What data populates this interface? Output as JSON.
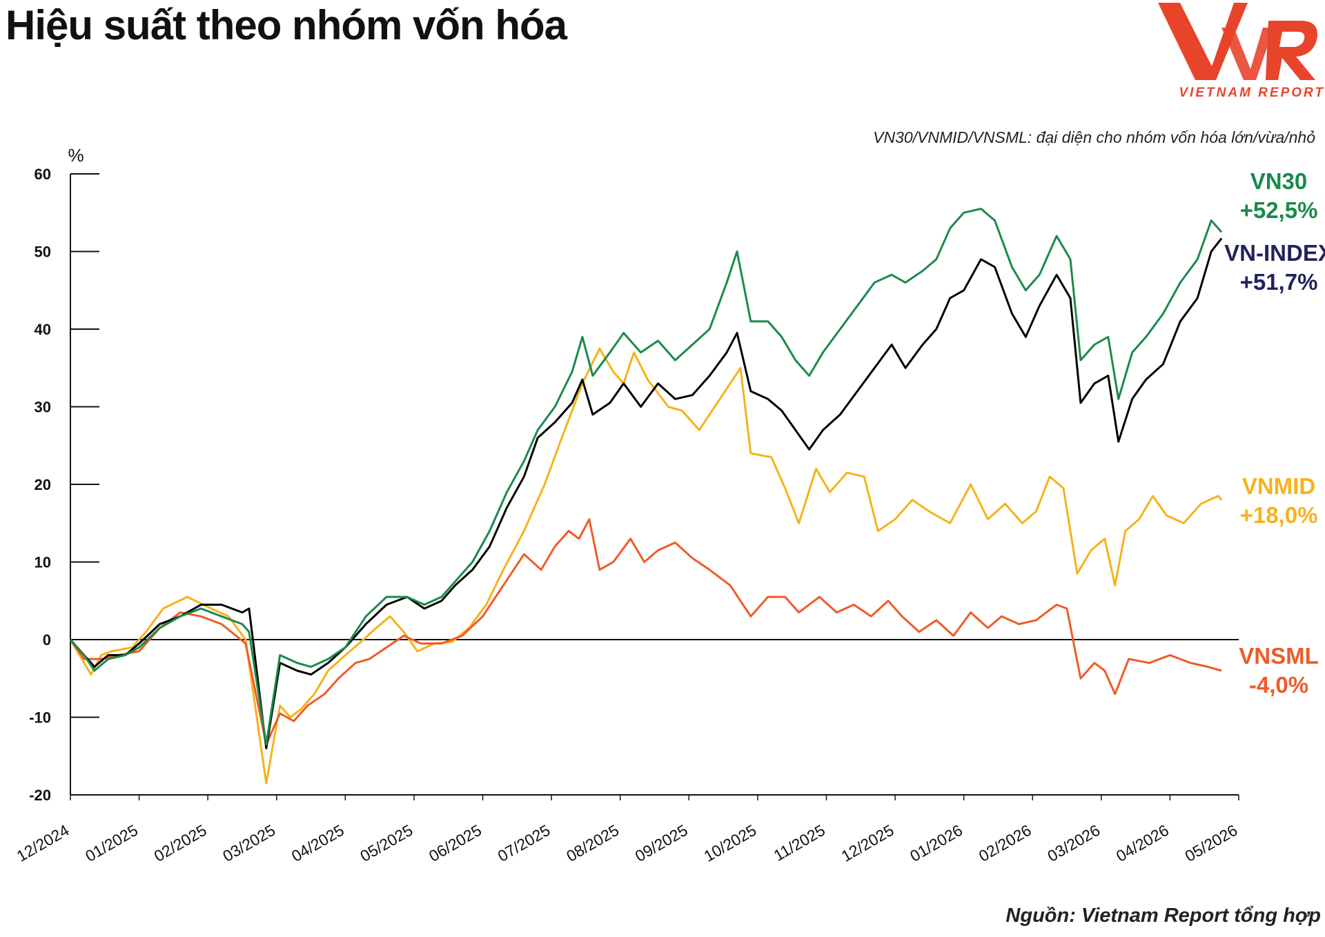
{
  "title": "Hiệu suất theo nhóm vốn hóa",
  "subtitle": "VN30/VNMID/VNSML: đại diện cho nhóm vốn hóa lớn/vừa/nhỏ",
  "source": "Nguồn: Vietnam Report tổng hợp",
  "logo": {
    "brand": "VNR",
    "tagline": "VIETNAM REPORT",
    "color": "#e8442a"
  },
  "chart_data": {
    "type": "line",
    "ylabel": "%",
    "ylim": [
      -20,
      60
    ],
    "yticks": [
      "60",
      "50",
      "40",
      "30",
      "20",
      "10",
      "0",
      "-10",
      "-20"
    ],
    "xticks": [
      "12/2024",
      "01/2025",
      "02/2025",
      "03/2025",
      "04/2025",
      "05/2025",
      "06/2025",
      "07/2025",
      "08/2025",
      "09/2025",
      "10/2025",
      "11/2025",
      "12/2025",
      "01/2026",
      "02/2026",
      "03/2026",
      "04/2026",
      "05/2026"
    ],
    "grid": false,
    "series": [
      {
        "name": "VNMID",
        "end_label": "+18,0%",
        "color": "#f6b21b",
        "values": [
          [
            0,
            0
          ],
          [
            0.2,
            -3
          ],
          [
            0.3,
            -4.5
          ],
          [
            0.45,
            -2
          ],
          [
            0.6,
            -1.5
          ],
          [
            0.9,
            -1
          ],
          [
            1.1,
            1
          ],
          [
            1.35,
            4
          ],
          [
            1.7,
            5.5
          ],
          [
            2.05,
            4
          ],
          [
            2.3,
            3
          ],
          [
            2.55,
            0
          ],
          [
            2.85,
            -18.5
          ],
          [
            3.05,
            -8.5
          ],
          [
            3.2,
            -10
          ],
          [
            3.35,
            -9
          ],
          [
            3.55,
            -7
          ],
          [
            3.75,
            -4
          ],
          [
            4.0,
            -2
          ],
          [
            4.2,
            -0.5
          ],
          [
            4.45,
            1.5
          ],
          [
            4.65,
            3
          ],
          [
            4.85,
            1
          ],
          [
            5.05,
            -1.5
          ],
          [
            5.3,
            -0.5
          ],
          [
            5.55,
            -0.3
          ],
          [
            5.8,
            1.5
          ],
          [
            6.05,
            4.5
          ],
          [
            6.3,
            9
          ],
          [
            6.6,
            14
          ],
          [
            6.9,
            20
          ],
          [
            7.15,
            26
          ],
          [
            7.45,
            33
          ],
          [
            7.7,
            37.5
          ],
          [
            7.9,
            34.5
          ],
          [
            8.05,
            33
          ],
          [
            8.2,
            37
          ],
          [
            8.4,
            33.5
          ],
          [
            8.7,
            30
          ],
          [
            8.9,
            29.5
          ],
          [
            9.15,
            27
          ],
          [
            9.45,
            31
          ],
          [
            9.75,
            35
          ],
          [
            9.9,
            24
          ],
          [
            10.2,
            23.5
          ],
          [
            10.4,
            19.5
          ],
          [
            10.6,
            15
          ],
          [
            10.85,
            22
          ],
          [
            11.05,
            19
          ],
          [
            11.3,
            21.5
          ],
          [
            11.55,
            21
          ],
          [
            11.75,
            14
          ],
          [
            12.0,
            15.5
          ],
          [
            12.25,
            18
          ],
          [
            12.5,
            16.5
          ],
          [
            12.8,
            15
          ],
          [
            13.1,
            20
          ],
          [
            13.35,
            15.5
          ],
          [
            13.6,
            17.5
          ],
          [
            13.85,
            15
          ],
          [
            14.05,
            16.5
          ],
          [
            14.25,
            21
          ],
          [
            14.45,
            19.5
          ],
          [
            14.65,
            8.5
          ],
          [
            14.85,
            11.5
          ],
          [
            15.05,
            13
          ],
          [
            15.2,
            7
          ],
          [
            15.35,
            14
          ],
          [
            15.55,
            15.5
          ],
          [
            15.75,
            18.5
          ],
          [
            15.95,
            16
          ],
          [
            16.2,
            15
          ],
          [
            16.45,
            17.5
          ],
          [
            16.7,
            18.5
          ],
          [
            16.75,
            18
          ]
        ]
      },
      {
        "name": "VNSML",
        "end_label": "-4,0%",
        "color": "#f05a28",
        "values": [
          [
            0,
            0
          ],
          [
            0.2,
            -2.5
          ],
          [
            0.45,
            -2.5
          ],
          [
            0.7,
            -2
          ],
          [
            1.0,
            -1.5
          ],
          [
            1.3,
            1.5
          ],
          [
            1.6,
            3.5
          ],
          [
            1.9,
            3
          ],
          [
            2.2,
            2
          ],
          [
            2.55,
            -0.5
          ],
          [
            2.85,
            -13.5
          ],
          [
            3.05,
            -9.5
          ],
          [
            3.25,
            -10.5
          ],
          [
            3.45,
            -8.5
          ],
          [
            3.7,
            -7
          ],
          [
            3.9,
            -5
          ],
          [
            4.15,
            -3
          ],
          [
            4.35,
            -2.5
          ],
          [
            4.6,
            -1
          ],
          [
            4.85,
            0.5
          ],
          [
            5.1,
            -0.5
          ],
          [
            5.4,
            -0.5
          ],
          [
            5.7,
            0.5
          ],
          [
            6.0,
            3
          ],
          [
            6.3,
            7
          ],
          [
            6.6,
            11
          ],
          [
            6.85,
            9
          ],
          [
            7.05,
            12
          ],
          [
            7.25,
            14
          ],
          [
            7.4,
            13
          ],
          [
            7.55,
            15.5
          ],
          [
            7.7,
            9
          ],
          [
            7.9,
            10
          ],
          [
            8.15,
            13
          ],
          [
            8.35,
            10
          ],
          [
            8.55,
            11.5
          ],
          [
            8.8,
            12.5
          ],
          [
            9.05,
            10.5
          ],
          [
            9.3,
            9
          ],
          [
            9.6,
            7
          ],
          [
            9.9,
            3
          ],
          [
            10.15,
            5.5
          ],
          [
            10.4,
            5.5
          ],
          [
            10.6,
            3.5
          ],
          [
            10.9,
            5.5
          ],
          [
            11.15,
            3.5
          ],
          [
            11.4,
            4.5
          ],
          [
            11.65,
            3
          ],
          [
            11.9,
            5
          ],
          [
            12.1,
            3
          ],
          [
            12.35,
            1
          ],
          [
            12.6,
            2.5
          ],
          [
            12.85,
            0.5
          ],
          [
            13.1,
            3.5
          ],
          [
            13.35,
            1.5
          ],
          [
            13.55,
            3
          ],
          [
            13.8,
            2
          ],
          [
            14.05,
            2.5
          ],
          [
            14.35,
            4.5
          ],
          [
            14.5,
            4
          ],
          [
            14.7,
            -5
          ],
          [
            14.9,
            -3
          ],
          [
            15.05,
            -4
          ],
          [
            15.2,
            -7
          ],
          [
            15.4,
            -2.5
          ],
          [
            15.7,
            -3
          ],
          [
            16.0,
            -2
          ],
          [
            16.3,
            -3
          ],
          [
            16.55,
            -3.5
          ],
          [
            16.75,
            -4
          ]
        ]
      },
      {
        "name": "VN-INDEX",
        "end_label": "+51,7%",
        "color": "#000000",
        "label_color": "#22225e",
        "values": [
          [
            0,
            0
          ],
          [
            0.2,
            -2
          ],
          [
            0.35,
            -3.5
          ],
          [
            0.55,
            -2
          ],
          [
            0.8,
            -2
          ],
          [
            1.0,
            -0.5
          ],
          [
            1.3,
            2
          ],
          [
            1.6,
            3
          ],
          [
            1.9,
            4.5
          ],
          [
            2.2,
            4.5
          ],
          [
            2.5,
            3.5
          ],
          [
            2.6,
            4
          ],
          [
            2.85,
            -14
          ],
          [
            3.05,
            -3
          ],
          [
            3.3,
            -4
          ],
          [
            3.5,
            -4.5
          ],
          [
            3.75,
            -3
          ],
          [
            4.0,
            -1
          ],
          [
            4.3,
            2
          ],
          [
            4.6,
            4.5
          ],
          [
            4.9,
            5.5
          ],
          [
            5.15,
            4
          ],
          [
            5.4,
            5
          ],
          [
            5.6,
            7
          ],
          [
            5.85,
            9
          ],
          [
            6.1,
            12
          ],
          [
            6.35,
            17
          ],
          [
            6.6,
            21
          ],
          [
            6.8,
            26
          ],
          [
            7.05,
            28
          ],
          [
            7.3,
            30.5
          ],
          [
            7.45,
            33.5
          ],
          [
            7.6,
            29
          ],
          [
            7.85,
            30.5
          ],
          [
            8.05,
            33
          ],
          [
            8.3,
            30
          ],
          [
            8.55,
            33
          ],
          [
            8.8,
            31
          ],
          [
            9.05,
            31.5
          ],
          [
            9.3,
            34
          ],
          [
            9.55,
            37
          ],
          [
            9.7,
            39.5
          ],
          [
            9.9,
            32
          ],
          [
            10.15,
            31
          ],
          [
            10.35,
            29.5
          ],
          [
            10.55,
            27
          ],
          [
            10.75,
            24.5
          ],
          [
            10.95,
            27
          ],
          [
            11.2,
            29
          ],
          [
            11.45,
            32
          ],
          [
            11.7,
            35
          ],
          [
            11.95,
            38
          ],
          [
            12.15,
            35
          ],
          [
            12.4,
            38
          ],
          [
            12.6,
            40
          ],
          [
            12.8,
            44
          ],
          [
            13.0,
            45
          ],
          [
            13.25,
            49
          ],
          [
            13.45,
            48
          ],
          [
            13.7,
            42
          ],
          [
            13.9,
            39
          ],
          [
            14.1,
            43
          ],
          [
            14.35,
            47
          ],
          [
            14.55,
            44
          ],
          [
            14.7,
            30.5
          ],
          [
            14.9,
            33
          ],
          [
            15.1,
            34
          ],
          [
            15.25,
            25.5
          ],
          [
            15.45,
            31
          ],
          [
            15.65,
            33.5
          ],
          [
            15.9,
            35.5
          ],
          [
            16.15,
            41
          ],
          [
            16.4,
            44
          ],
          [
            16.6,
            50
          ],
          [
            16.75,
            51.7
          ]
        ]
      },
      {
        "name": "VN30",
        "end_label": "+52,5%",
        "color": "#1a8a4b",
        "values": [
          [
            0,
            0
          ],
          [
            0.2,
            -2
          ],
          [
            0.35,
            -4
          ],
          [
            0.55,
            -2.5
          ],
          [
            0.8,
            -2
          ],
          [
            1.0,
            -1
          ],
          [
            1.3,
            1.5
          ],
          [
            1.6,
            3
          ],
          [
            1.9,
            4
          ],
          [
            2.2,
            3
          ],
          [
            2.5,
            2
          ],
          [
            2.6,
            1
          ],
          [
            2.85,
            -13.5
          ],
          [
            3.05,
            -2
          ],
          [
            3.3,
            -3
          ],
          [
            3.5,
            -3.5
          ],
          [
            3.75,
            -2.5
          ],
          [
            4.0,
            -1
          ],
          [
            4.3,
            3
          ],
          [
            4.6,
            5.5
          ],
          [
            4.9,
            5.5
          ],
          [
            5.15,
            4.5
          ],
          [
            5.4,
            5.5
          ],
          [
            5.6,
            7.5
          ],
          [
            5.85,
            10
          ],
          [
            6.1,
            14
          ],
          [
            6.35,
            19
          ],
          [
            6.6,
            23
          ],
          [
            6.8,
            27
          ],
          [
            7.05,
            30
          ],
          [
            7.3,
            34.5
          ],
          [
            7.45,
            39
          ],
          [
            7.6,
            34
          ],
          [
            7.85,
            37
          ],
          [
            8.05,
            39.5
          ],
          [
            8.3,
            37
          ],
          [
            8.55,
            38.5
          ],
          [
            8.8,
            36
          ],
          [
            9.05,
            38
          ],
          [
            9.3,
            40
          ],
          [
            9.55,
            46
          ],
          [
            9.7,
            50
          ],
          [
            9.9,
            41
          ],
          [
            10.15,
            41
          ],
          [
            10.35,
            39
          ],
          [
            10.55,
            36
          ],
          [
            10.75,
            34
          ],
          [
            10.95,
            37
          ],
          [
            11.2,
            40
          ],
          [
            11.45,
            43
          ],
          [
            11.7,
            46
          ],
          [
            11.95,
            47
          ],
          [
            12.15,
            46
          ],
          [
            12.4,
            47.5
          ],
          [
            12.6,
            49
          ],
          [
            12.8,
            53
          ],
          [
            13.0,
            55
          ],
          [
            13.25,
            55.5
          ],
          [
            13.45,
            54
          ],
          [
            13.7,
            48
          ],
          [
            13.9,
            45
          ],
          [
            14.1,
            47
          ],
          [
            14.35,
            52
          ],
          [
            14.55,
            49
          ],
          [
            14.7,
            36
          ],
          [
            14.9,
            38
          ],
          [
            15.1,
            39
          ],
          [
            15.25,
            31
          ],
          [
            15.45,
            37
          ],
          [
            15.65,
            39
          ],
          [
            15.9,
            42
          ],
          [
            16.15,
            46
          ],
          [
            16.4,
            49
          ],
          [
            16.6,
            54
          ],
          [
            16.75,
            52.5
          ]
        ]
      }
    ]
  }
}
